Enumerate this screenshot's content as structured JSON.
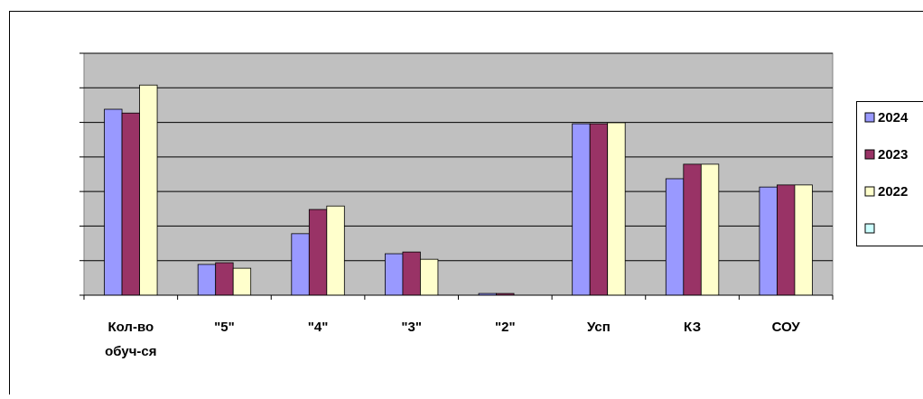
{
  "chart_data": {
    "type": "bar",
    "categories": [
      "Кол-во обуч-ся",
      "\"5\"",
      "\"4\"",
      "\"3\"",
      "\"2\"",
      "Усп",
      "КЗ",
      "СОУ"
    ],
    "series": [
      {
        "name": "2024",
        "color": "#9999ff",
        "values": [
          5.38,
          0.89,
          1.78,
          1.2,
          0.05,
          4.96,
          3.37,
          3.13
        ]
      },
      {
        "name": "2023",
        "color": "#993366",
        "values": [
          5.27,
          0.94,
          2.48,
          1.25,
          0.05,
          4.96,
          3.79,
          3.19
        ]
      },
      {
        "name": "2022",
        "color": "#ffffcc",
        "values": [
          6.08,
          0.78,
          2.58,
          1.04,
          0,
          4.99,
          3.79,
          3.19
        ]
      },
      {
        "name": null,
        "color": "#ccffff",
        "values": [
          null,
          null,
          null,
          null,
          null,
          null,
          null,
          null
        ]
      }
    ],
    "ylim": [
      0,
      7
    ],
    "yticks": [
      0,
      1,
      2,
      3,
      4,
      5,
      6,
      7
    ],
    "ytick_labels": false,
    "grid": true,
    "plot_background": "#c0c0c0",
    "legend": "right"
  }
}
